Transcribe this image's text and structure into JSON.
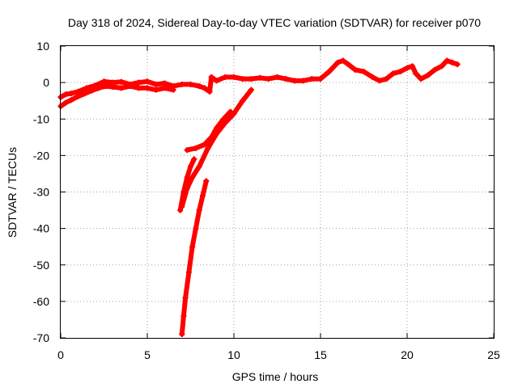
{
  "chart_data": {
    "type": "scatter",
    "title": "Day 318 of 2024, Sidereal Day-to-day VTEC variation (SDTVAR) for receiver p070",
    "xlabel": "GPS time / hours",
    "ylabel": "SDTVAR / TECUs",
    "xlim": [
      0,
      25
    ],
    "ylim": [
      -70,
      10
    ],
    "xticks": [
      0,
      5,
      10,
      15,
      20,
      25
    ],
    "yticks": [
      -70,
      -60,
      -50,
      -40,
      -30,
      -20,
      -10,
      0,
      10
    ],
    "grid": true,
    "marker_color": "#ff0000",
    "series": [
      {
        "name": "main-trace",
        "points": [
          [
            0.0,
            -4.0
          ],
          [
            0.3,
            -3.2
          ],
          [
            0.6,
            -3.0
          ],
          [
            1.0,
            -2.5
          ],
          [
            1.5,
            -1.5
          ],
          [
            2.0,
            -0.8
          ],
          [
            2.5,
            0.3
          ],
          [
            3.0,
            0.0
          ],
          [
            3.5,
            0.2
          ],
          [
            4.0,
            -0.5
          ],
          [
            4.5,
            0.0
          ],
          [
            5.0,
            0.3
          ],
          [
            5.5,
            -0.5
          ],
          [
            6.0,
            -0.2
          ],
          [
            6.5,
            -1.0
          ],
          [
            7.0,
            -0.5
          ],
          [
            7.5,
            -0.5
          ],
          [
            8.0,
            -1.0
          ],
          [
            8.3,
            -1.5
          ],
          [
            8.6,
            -2.5
          ],
          [
            8.7,
            1.5
          ],
          [
            9.0,
            0.5
          ],
          [
            9.5,
            1.5
          ],
          [
            10.0,
            1.5
          ],
          [
            10.5,
            1.0
          ],
          [
            11.0,
            1.0
          ],
          [
            11.5,
            1.3
          ],
          [
            12.0,
            1.0
          ],
          [
            12.5,
            1.5
          ],
          [
            13.0,
            1.0
          ],
          [
            13.5,
            0.5
          ],
          [
            14.0,
            0.5
          ],
          [
            14.5,
            1.0
          ],
          [
            15.0,
            1.0
          ],
          [
            15.5,
            3.0
          ],
          [
            16.0,
            5.5
          ],
          [
            16.3,
            6.0
          ],
          [
            16.6,
            5.0
          ],
          [
            17.0,
            3.5
          ],
          [
            17.5,
            3.0
          ],
          [
            18.0,
            1.5
          ],
          [
            18.4,
            0.5
          ],
          [
            18.8,
            1.0
          ],
          [
            19.2,
            2.5
          ],
          [
            19.6,
            3.0
          ],
          [
            20.0,
            4.0
          ],
          [
            20.3,
            4.5
          ],
          [
            20.5,
            2.5
          ],
          [
            20.8,
            1.0
          ],
          [
            21.2,
            2.0
          ],
          [
            21.6,
            3.5
          ],
          [
            22.0,
            4.5
          ],
          [
            22.3,
            6.0
          ],
          [
            22.6,
            5.5
          ],
          [
            22.9,
            5.0
          ]
        ]
      },
      {
        "name": "start-spread",
        "points": [
          [
            0.0,
            -6.5
          ],
          [
            0.3,
            -5.5
          ],
          [
            0.6,
            -4.8
          ],
          [
            1.0,
            -3.8
          ],
          [
            1.4,
            -3.0
          ],
          [
            1.8,
            -2.2
          ],
          [
            2.2,
            -1.5
          ],
          [
            2.6,
            -1.0
          ],
          [
            3.0,
            -1.2
          ],
          [
            3.5,
            -1.5
          ],
          [
            4.0,
            -1.0
          ],
          [
            4.5,
            -1.5
          ],
          [
            5.0,
            -1.5
          ],
          [
            5.5,
            -2.0
          ],
          [
            6.0,
            -1.5
          ],
          [
            6.5,
            -2.0
          ]
        ]
      },
      {
        "name": "arc-diagonal",
        "points": [
          [
            7.0,
            -34.0
          ],
          [
            7.3,
            -29.0
          ],
          [
            7.6,
            -26.0
          ],
          [
            8.0,
            -23.0
          ],
          [
            8.5,
            -18.0
          ],
          [
            9.0,
            -14.0
          ],
          [
            9.5,
            -11.0
          ],
          [
            10.0,
            -8.5
          ],
          [
            10.5,
            -5.0
          ],
          [
            11.0,
            -2.0
          ]
        ]
      },
      {
        "name": "arc-upper-curve",
        "points": [
          [
            7.3,
            -18.5
          ],
          [
            7.8,
            -18.0
          ],
          [
            8.3,
            -17.0
          ],
          [
            8.7,
            -15.0
          ],
          [
            9.0,
            -12.5
          ],
          [
            9.4,
            -10.0
          ],
          [
            9.8,
            -8.0
          ]
        ]
      },
      {
        "name": "arc-left-rise",
        "points": [
          [
            6.9,
            -35.0
          ],
          [
            7.1,
            -30.0
          ],
          [
            7.3,
            -26.0
          ],
          [
            7.5,
            -23.0
          ],
          [
            7.7,
            -21.0
          ]
        ]
      },
      {
        "name": "arc-steep-lower",
        "points": [
          [
            7.0,
            -69.0
          ],
          [
            7.1,
            -64.0
          ],
          [
            7.2,
            -59.0
          ],
          [
            7.4,
            -52.0
          ],
          [
            7.6,
            -45.0
          ],
          [
            7.8,
            -40.0
          ],
          [
            8.0,
            -35.0
          ],
          [
            8.2,
            -31.0
          ],
          [
            8.4,
            -27.0
          ]
        ]
      }
    ]
  }
}
